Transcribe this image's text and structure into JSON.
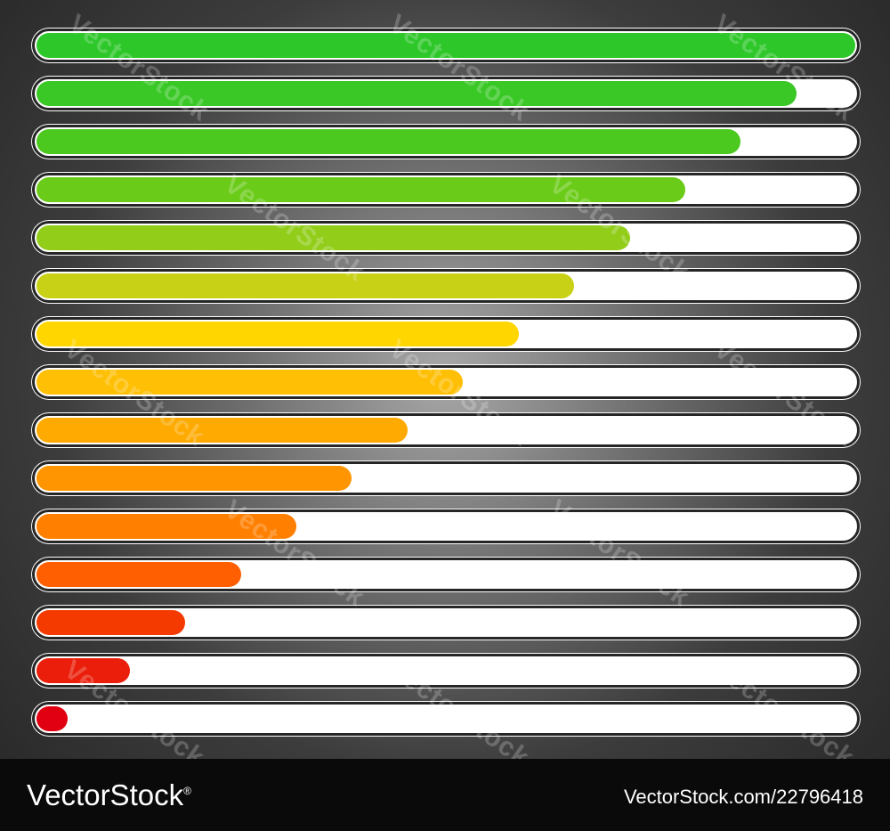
{
  "progress_bars": [
    {
      "level": 1.0,
      "color": "#2ec72a"
    },
    {
      "level": 0.928,
      "color": "#39c826"
    },
    {
      "level": 0.86,
      "color": "#4cc91f"
    },
    {
      "level": 0.792,
      "color": "#6bcb19"
    },
    {
      "level": 0.725,
      "color": "#92cd1a"
    },
    {
      "level": 0.657,
      "color": "#c8d115"
    },
    {
      "level": 0.589,
      "color": "#ffd600"
    },
    {
      "level": 0.521,
      "color": "#ffbf05"
    },
    {
      "level": 0.453,
      "color": "#ffaa00"
    },
    {
      "level": 0.385,
      "color": "#ff9500"
    },
    {
      "level": 0.317,
      "color": "#ff7f00"
    },
    {
      "level": 0.25,
      "color": "#ff5f00"
    },
    {
      "level": 0.182,
      "color": "#f53a00"
    },
    {
      "level": 0.114,
      "color": "#ea1e0a"
    },
    {
      "level": 0.038,
      "color": "#e10012"
    }
  ],
  "watermark": {
    "text": "VectorStock"
  },
  "footer": {
    "brand": "VectorStock",
    "registered_mark": "®",
    "site": "VectorStock.com/22796418"
  }
}
